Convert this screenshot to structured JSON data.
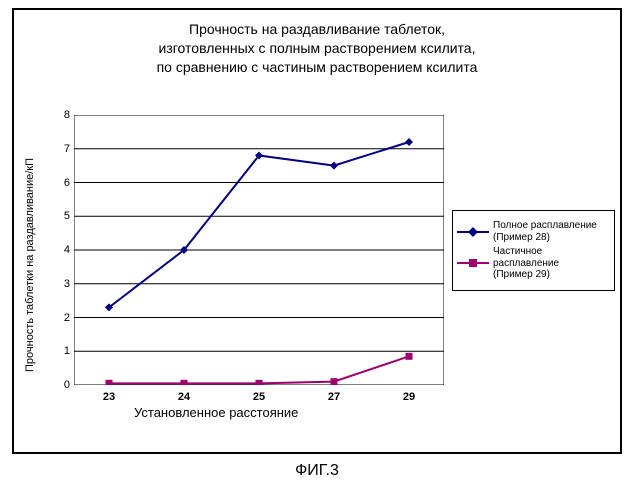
{
  "title_line1": "Прочность на раздавливание таблеток,",
  "title_line2": "изготовленных с полным растворением ксилита,",
  "title_line3": "по сравнению с частиным растворением ксилита",
  "ylabel": "Прочность таблетки на раздавливание/кП",
  "xlabel": "Установленное расстояние",
  "figure_label": "ФИГ.3",
  "chart": {
    "type": "line",
    "x_categories": [
      "23",
      "24",
      "25",
      "27",
      "29"
    ],
    "ylim": [
      0,
      8
    ],
    "ytick_step": 1,
    "grid_color": "#000000",
    "background_color": "#ffffff",
    "axis_color": "#000000",
    "series": [
      {
        "name": "Полное расплавление (Пример 28)",
        "legend_l1": "Полное расплавление",
        "legend_l2": "(Пример 28)",
        "color": "#000080",
        "marker": "diamond",
        "marker_size": 8,
        "line_width": 2,
        "values": [
          2.3,
          4.0,
          6.8,
          6.5,
          7.2
        ]
      },
      {
        "name": "Частичное расплавление (Пример 29)",
        "legend_l1": "Частичное расплавление",
        "legend_l2": "(Пример 29)",
        "color": "#a0006e",
        "marker": "square",
        "marker_size": 7,
        "line_width": 2,
        "values": [
          0.05,
          0.05,
          0.05,
          0.1,
          0.85
        ]
      }
    ]
  },
  "yticks": [
    "0",
    "1",
    "2",
    "3",
    "4",
    "5",
    "6",
    "7",
    "8"
  ]
}
